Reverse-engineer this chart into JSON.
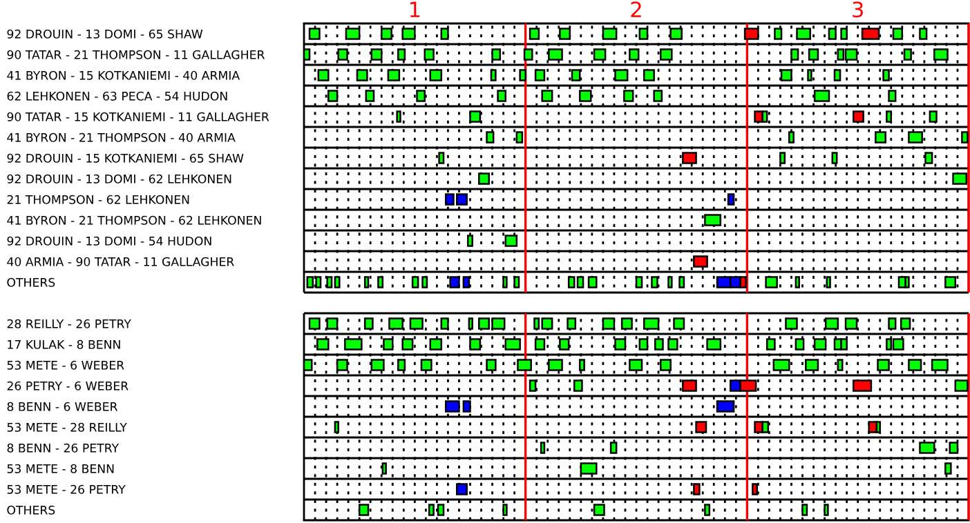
{
  "chart_data": {
    "type": "bar",
    "orientation": "horizontal",
    "grid": "x",
    "xlim": [
      0.5,
      3.5
    ],
    "xticks": [
      {
        "value": 0.55,
        "label": null
      },
      {
        "value": 0.6,
        "label": null
      },
      {
        "value": 0.65,
        "label": null
      },
      {
        "value": 0.7,
        "label": null
      },
      {
        "value": 0.75,
        "label": null
      },
      {
        "value": 0.8,
        "label": null
      },
      {
        "value": 0.85,
        "label": null
      },
      {
        "value": 0.9,
        "label": null
      },
      {
        "value": 0.95,
        "label": null
      },
      1,
      {
        "value": 1.05,
        "label": null
      },
      {
        "value": 1.1,
        "label": null
      },
      {
        "value": 1.15,
        "label": null
      },
      {
        "value": 1.2,
        "label": null
      },
      {
        "value": 1.25,
        "label": null
      },
      {
        "value": 1.3,
        "label": null
      },
      {
        "value": 1.35,
        "label": null
      },
      {
        "value": 1.4,
        "label": null
      },
      {
        "value": 1.45,
        "label": null
      },
      {
        "value": 1.55,
        "label": null
      },
      {
        "value": 1.6,
        "label": null
      },
      {
        "value": 1.65,
        "label": null
      },
      {
        "value": 1.7,
        "label": null
      },
      {
        "value": 1.75,
        "label": null
      },
      {
        "value": 1.8,
        "label": null
      },
      {
        "value": 1.85,
        "label": null
      },
      {
        "value": 1.9,
        "label": null
      },
      {
        "value": 1.95,
        "label": null
      },
      2,
      {
        "value": 2.05,
        "label": null
      },
      {
        "value": 2.1,
        "label": null
      },
      {
        "value": 2.15,
        "label": null
      },
      {
        "value": 2.2,
        "label": null
      },
      {
        "value": 2.25,
        "label": null
      },
      {
        "value": 2.3,
        "label": null
      },
      {
        "value": 2.35,
        "label": null
      },
      {
        "value": 2.4,
        "label": null
      },
      {
        "value": 2.45,
        "label": null
      },
      {
        "value": 2.55,
        "label": null
      },
      {
        "value": 2.6,
        "label": null
      },
      {
        "value": 2.65,
        "label": null
      },
      {
        "value": 2.7,
        "label": null
      },
      {
        "value": 2.75,
        "label": null
      },
      {
        "value": 2.8,
        "label": null
      },
      {
        "value": 2.85,
        "label": null
      },
      {
        "value": 2.9,
        "label": null
      },
      {
        "value": 2.95,
        "label": null
      },
      3,
      {
        "value": 3.05,
        "label": null
      },
      {
        "value": 3.1,
        "label": null
      },
      {
        "value": 3.15,
        "label": null
      },
      {
        "value": 3.2,
        "label": null
      },
      {
        "value": 3.25,
        "label": null
      },
      {
        "value": 3.3,
        "label": null
      },
      {
        "value": 3.35,
        "label": null
      },
      {
        "value": 3.4,
        "label": null
      },
      {
        "value": 3.45,
        "label": null
      }
    ],
    "ref_lines": [
      {
        "axis": "x",
        "value": 1.5,
        "color": "#ff0000"
      },
      {
        "axis": "x",
        "value": 2.5,
        "color": "#ff0000"
      },
      {
        "axis": "x",
        "value": 3.5,
        "color": "#ff0000"
      }
    ],
    "categories": [
      "92 DROUIN - 13 DOMI - 65 SHAW",
      "90 TATAR - 21 THOMPSON - 11 GALLAGHER",
      "41 BYRON - 15 KOTKANIEMI - 40 ARMIA",
      "62 LEHKONEN - 63 PECA - 54 HUDON",
      "90 TATAR - 15 KOTKANIEMI - 11 GALLAGHER",
      "41 BYRON - 21 THOMPSON - 40 ARMIA",
      "92 DROUIN - 15 KOTKANIEMI - 65 SHAW",
      "92 DROUIN - 13 DOMI - 62 LEHKONEN",
      "21 THOMPSON - 62 LEHKONEN",
      "41 BYRON - 21 THOMPSON - 62 LEHKONEN",
      "92 DROUIN - 13 DOMI - 54 HUDON",
      "40 ARMIA - 90 TATAR - 11 GALLAGHER",
      "OTHERS",
      null,
      "28 REILLY - 26 PETRY",
      "17 KULAK - 8 BENN",
      "53 METE - 6 WEBER",
      "26 PETRY - 6 WEBER",
      "8 BENN - 6 WEBER",
      "53 METE - 28 REILLY",
      "8 BENN - 26 PETRY",
      "53 METE - 8 BENN",
      "53 METE - 26 PETRY",
      "OTHERS"
    ],
    "series": [
      {
        "base": [
          0.525,
          0.5,
          0.565,
          0.61,
          0.92,
          1.325,
          1.11,
          1.29,
          1.14,
          2.31,
          1.24,
          2.26,
          0.515,
          null,
          0.525,
          0.56,
          0.5,
          1.52,
          1.14,
          0.64,
          1.57,
          0.855,
          1.19,
          0.75
        ],
        "values": [
          0.045,
          0.025,
          0.045,
          0.04,
          0.015,
          0.03,
          0.02,
          0.045,
          0.035,
          0.07,
          0.02,
          0.06,
          0.025,
          null,
          0.045,
          0.05,
          0.035,
          0.025,
          0.06,
          0.015,
          0.015,
          0.015,
          0.045,
          0.04
        ],
        "colors": [
          "#00ff00",
          "#00ff00",
          "#00ff00",
          "#00ff00",
          "#00ff00",
          "#00ff00",
          "#00ff00",
          "#00ff00",
          "#0000ff",
          "#00ff00",
          "#00ff00",
          "#ff0000",
          "#00ff00",
          null,
          "#00ff00",
          "#00ff00",
          "#00ff00",
          "#00ff00",
          "#0000ff",
          "#00ff00",
          "#00ff00",
          "#00ff00",
          "#0000ff",
          "#00ff00"
        ]
      },
      {
        "base": [
          0.69,
          0.655,
          0.74,
          0.78,
          1.25,
          1.46,
          2.21,
          3.43,
          1.19,
          null,
          1.41,
          null,
          0.555,
          null,
          0.605,
          0.685,
          0.65,
          1.72,
          1.22,
          2.27,
          1.885,
          1.75,
          2.26,
          1.065
        ],
        "values": [
          0.06,
          0.04,
          0.045,
          0.035,
          0.045,
          0.025,
          0.06,
          0.06,
          0.045,
          null,
          0.05,
          null,
          0.02,
          null,
          0.045,
          0.075,
          0.045,
          0.035,
          0.03,
          0.045,
          0.025,
          0.07,
          0.025,
          0.02
        ],
        "colors": [
          "#00ff00",
          "#00ff00",
          "#00ff00",
          "#00ff00",
          "#00ff00",
          "#00ff00",
          "#ff0000",
          "#00ff00",
          "#0000ff",
          null,
          "#00ff00",
          null,
          "#00ff00",
          null,
          "#00ff00",
          "#00ff00",
          "#00ff00",
          "#00ff00",
          "#0000ff",
          "#ff0000",
          "#00ff00",
          "#00ff00",
          "#ff0000",
          "#00ff00"
        ]
      },
      {
        "base": [
          0.85,
          0.805,
          0.88,
          1.01,
          2.535,
          2.69,
          2.65,
          null,
          2.415,
          null,
          null,
          null,
          0.605,
          null,
          0.775,
          0.86,
          0.805,
          2.21,
          2.365,
          2.535,
          3.28,
          3.395,
          2.525,
          1.105
        ],
        "values": [
          0.045,
          0.045,
          0.05,
          0.035,
          0.035,
          0.02,
          0.02,
          null,
          0.025,
          null,
          null,
          null,
          0.02,
          null,
          0.035,
          0.04,
          0.055,
          0.06,
          0.075,
          0.035,
          0.065,
          0.025,
          0.02,
          0.025
        ],
        "colors": [
          "#00ff00",
          "#00ff00",
          "#00ff00",
          "#00ff00",
          "#ff0000",
          "#00ff00",
          "#00ff00",
          null,
          "#0000ff",
          null,
          null,
          null,
          "#00ff00",
          null,
          "#00ff00",
          "#00ff00",
          "#00ff00",
          "#ff0000",
          "#0000ff",
          "#ff0000",
          "#00ff00",
          "#00ff00",
          "#ff0000",
          "#00ff00"
        ]
      },
      {
        "base": [
          0.945,
          0.925,
          1.07,
          1.375,
          2.57,
          3.08,
          2.885,
          null,
          null,
          null,
          null,
          null,
          0.64,
          null,
          0.885,
          0.945,
          0.925,
          2.425,
          null,
          2.57,
          3.415,
          null,
          null,
          1.4
        ],
        "values": [
          0.055,
          0.03,
          0.05,
          0.035,
          0.02,
          0.045,
          0.02,
          null,
          null,
          null,
          null,
          null,
          0.02,
          null,
          0.06,
          0.045,
          0.03,
          0.045,
          null,
          0.025,
          0.035,
          null,
          null,
          0.015
        ],
        "colors": [
          "#00ff00",
          "#00ff00",
          "#00ff00",
          "#00ff00",
          "#00ff00",
          "#00ff00",
          "#00ff00",
          null,
          null,
          null,
          null,
          null,
          "#00ff00",
          null,
          "#00ff00",
          "#00ff00",
          "#00ff00",
          "#0000ff",
          null,
          "#00ff00",
          "#00ff00",
          null,
          null,
          "#00ff00"
        ]
      },
      {
        "base": [
          1.12,
          1.045,
          1.345,
          1.575,
          2.98,
          3.23,
          3.305,
          null,
          null,
          null,
          null,
          null,
          0.775,
          null,
          0.98,
          1.07,
          1.03,
          2.47,
          null,
          3.05,
          null,
          null,
          null,
          1.81
        ],
        "values": [
          0.03,
          0.04,
          0.02,
          0.045,
          0.045,
          0.06,
          0.03,
          null,
          null,
          null,
          null,
          null,
          0.015,
          null,
          0.055,
          0.05,
          0.045,
          0.07,
          null,
          0.035,
          null,
          null,
          null,
          0.045
        ],
        "colors": [
          "#00ff00",
          "#00ff00",
          "#00ff00",
          "#00ff00",
          "#ff0000",
          "#00ff00",
          "#00ff00",
          null,
          null,
          null,
          null,
          null,
          "#00ff00",
          null,
          "#00ff00",
          "#00ff00",
          "#00ff00",
          "#ff0000",
          null,
          "#ff0000",
          null,
          null,
          null,
          "#00ff00"
        ]
      },
      {
        "base": [
          1.52,
          1.35,
          1.475,
          1.745,
          3.13,
          3.47,
          null,
          null,
          null,
          null,
          null,
          null,
          0.835,
          null,
          1.12,
          1.25,
          1.325,
          2.98,
          null,
          3.085,
          null,
          null,
          null,
          2.31
        ],
        "values": [
          0.04,
          0.035,
          0.025,
          0.05,
          0.02,
          0.025,
          null,
          null,
          null,
          null,
          null,
          null,
          0.02,
          null,
          0.03,
          0.045,
          0.04,
          0.08,
          null,
          0.015,
          null,
          null,
          null,
          0.02
        ],
        "colors": [
          "#00ff00",
          "#00ff00",
          "#00ff00",
          "#00ff00",
          "#00ff00",
          "#00ff00",
          null,
          null,
          null,
          null,
          null,
          null,
          "#00ff00",
          null,
          "#00ff00",
          "#00ff00",
          "#00ff00",
          "#ff0000",
          null,
          "#00ff00",
          null,
          null,
          null,
          "#00ff00"
        ]
      },
      {
        "base": [
          1.655,
          1.495,
          1.545,
          1.945,
          3.325,
          null,
          null,
          null,
          null,
          null,
          null,
          null,
          0.99,
          null,
          1.245,
          1.41,
          1.465,
          3.44,
          null,
          null,
          null,
          null,
          null,
          2.75
        ],
        "values": [
          0.045,
          0.035,
          0.04,
          0.04,
          0.03,
          null,
          null,
          null,
          null,
          null,
          null,
          null,
          0.025,
          null,
          0.015,
          0.065,
          0.06,
          0.055,
          null,
          null,
          null,
          null,
          null,
          0.02
        ],
        "color": "#00ff00"
      },
      {
        "base": [
          1.85,
          1.605,
          1.71,
          2.08,
          null,
          null,
          null,
          null,
          null,
          null,
          null,
          null,
          1.035,
          null,
          1.29,
          1.545,
          1.605,
          null,
          null,
          null,
          null,
          null,
          null,
          2.85
        ],
        "values": [
          0.06,
          0.06,
          0.035,
          0.035,
          null,
          null,
          null,
          null,
          null,
          null,
          null,
          null,
          0.02,
          null,
          0.045,
          0.04,
          0.06,
          null,
          null,
          null,
          null,
          null,
          null,
          0.015
        ],
        "color": "#00ff00"
      },
      {
        "base": [
          2.015,
          1.81,
          1.905,
          2.805,
          null,
          null,
          null,
          null,
          null,
          null,
          null,
          null,
          1.16,
          null,
          1.35,
          1.655,
          1.745,
          null,
          null,
          null,
          null,
          null,
          null,
          null
        ],
        "values": [
          0.035,
          0.05,
          0.055,
          0.065,
          null,
          null,
          null,
          null,
          null,
          null,
          null,
          null,
          0.04,
          null,
          0.055,
          0.04,
          0.02,
          null,
          null,
          null,
          null,
          null,
          null,
          null
        ],
        "colors": [
          "#00ff00",
          "#00ff00",
          "#00ff00",
          "#00ff00",
          null,
          null,
          null,
          null,
          null,
          null,
          null,
          null,
          "#0000ff",
          null,
          "#00ff00",
          "#00ff00",
          "#00ff00",
          null,
          null,
          null,
          null,
          null,
          null,
          null
        ]
      },
      {
        "base": [
          2.155,
          1.97,
          2.035,
          3.14,
          null,
          null,
          null,
          null,
          null,
          null,
          null,
          null,
          1.22,
          null,
          1.54,
          1.905,
          1.97,
          null,
          null,
          null,
          null,
          null,
          null,
          null
        ],
        "values": [
          0.05,
          0.04,
          0.045,
          0.03,
          null,
          null,
          null,
          null,
          null,
          null,
          null,
          null,
          0.025,
          null,
          0.02,
          0.045,
          0.055,
          null,
          null,
          null,
          null,
          null,
          null,
          null
        ],
        "colors": [
          "#00ff00",
          "#00ff00",
          "#00ff00",
          "#00ff00",
          null,
          null,
          null,
          null,
          null,
          null,
          null,
          null,
          "#0000ff",
          null,
          "#00ff00",
          "#00ff00",
          "#00ff00",
          null,
          null,
          null,
          null,
          null,
          null,
          null
        ]
      },
      {
        "base": [
          2.49,
          2.11,
          2.655,
          null,
          null,
          null,
          null,
          null,
          null,
          null,
          null,
          null,
          1.4,
          null,
          1.575,
          2.015,
          2.11,
          null,
          null,
          null,
          null,
          null,
          null,
          null
        ],
        "values": [
          0.06,
          0.05,
          0.045,
          null,
          null,
          null,
          null,
          null,
          null,
          null,
          null,
          null,
          0.015,
          null,
          0.045,
          0.035,
          0.045,
          null,
          null,
          null,
          null,
          null,
          null,
          null
        ],
        "colors": [
          "#ff0000",
          "#00ff00",
          "#00ff00",
          null,
          null,
          null,
          null,
          null,
          null,
          null,
          null,
          null,
          "#00ff00",
          null,
          "#00ff00",
          "#00ff00",
          "#00ff00",
          null,
          null,
          null,
          null,
          null,
          null,
          null
        ]
      },
      {
        "base": [
          2.625,
          2.7,
          2.775,
          null,
          null,
          null,
          null,
          null,
          null,
          null,
          null,
          null,
          1.45,
          null,
          1.69,
          2.085,
          2.62,
          null,
          null,
          null,
          null,
          null,
          null,
          null
        ],
        "values": [
          0.03,
          0.03,
          0.015,
          null,
          null,
          null,
          null,
          null,
          null,
          null,
          null,
          null,
          0.02,
          null,
          0.035,
          0.035,
          0.07,
          null,
          null,
          null,
          null,
          null,
          null,
          null
        ],
        "color": "#00ff00"
      },
      {
        "base": [
          2.725,
          2.78,
          2.895,
          null,
          null,
          null,
          null,
          null,
          null,
          null,
          null,
          null,
          1.695,
          null,
          1.85,
          2.145,
          2.765,
          null,
          null,
          null,
          null,
          null,
          null,
          null
        ],
        "values": [
          0.06,
          0.04,
          0.025,
          null,
          null,
          null,
          null,
          null,
          null,
          null,
          null,
          null,
          0.025,
          null,
          0.05,
          0.04,
          0.055,
          null,
          null,
          null,
          null,
          null,
          null,
          null
        ],
        "color": "#00ff00"
      },
      {
        "base": [
          2.87,
          2.91,
          3.115,
          null,
          null,
          null,
          null,
          null,
          null,
          null,
          null,
          null,
          1.735,
          null,
          1.935,
          2.32,
          2.91,
          null,
          null,
          null,
          null,
          null,
          null,
          null
        ],
        "values": [
          0.03,
          0.025,
          0.025,
          null,
          null,
          null,
          null,
          null,
          null,
          null,
          null,
          null,
          0.025,
          null,
          0.045,
          0.06,
          0.02,
          null,
          null,
          null,
          null,
          null,
          null,
          null
        ],
        "color": "#00ff00"
      },
      {
        "base": [
          2.925,
          2.945,
          null,
          null,
          null,
          null,
          null,
          null,
          null,
          null,
          null,
          null,
          1.785,
          null,
          2.035,
          2.59,
          3.09,
          null,
          null,
          null,
          null,
          null,
          null,
          null
        ],
        "values": [
          0.025,
          0.05,
          null,
          null,
          null,
          null,
          null,
          null,
          null,
          null,
          null,
          null,
          0.035,
          null,
          0.065,
          0.035,
          0.05,
          null,
          null,
          null,
          null,
          null,
          null,
          null
        ],
        "color": "#00ff00"
      },
      {
        "base": [
          3.02,
          3.21,
          null,
          null,
          null,
          null,
          null,
          null,
          null,
          null,
          null,
          null,
          2.0,
          null,
          2.17,
          2.72,
          3.23,
          null,
          null,
          null,
          null,
          null,
          null,
          null
        ],
        "values": [
          0.075,
          0.03,
          null,
          null,
          null,
          null,
          null,
          null,
          null,
          null,
          null,
          null,
          0.025,
          null,
          0.045,
          0.035,
          0.055,
          null,
          null,
          null,
          null,
          null,
          null,
          null
        ],
        "colors": [
          "#ff0000",
          "#00ff00",
          null,
          null,
          null,
          null,
          null,
          null,
          null,
          null,
          null,
          null,
          "#00ff00",
          null,
          "#00ff00",
          "#00ff00",
          "#00ff00",
          null,
          null,
          null,
          null,
          null,
          null,
          null
        ]
      },
      {
        "base": [
          3.16,
          3.345,
          null,
          null,
          null,
          null,
          null,
          null,
          null,
          null,
          null,
          null,
          2.07,
          null,
          2.675,
          2.805,
          3.335,
          null,
          null,
          null,
          null,
          null,
          null,
          null
        ],
        "values": [
          0.04,
          0.06,
          null,
          null,
          null,
          null,
          null,
          null,
          null,
          null,
          null,
          null,
          0.025,
          null,
          0.05,
          0.05,
          0.07,
          null,
          null,
          null,
          null,
          null,
          null,
          null
        ],
        "color": "#00ff00"
      },
      {
        "base": [
          3.28,
          null,
          null,
          null,
          null,
          null,
          null,
          null,
          null,
          null,
          null,
          null,
          2.145,
          null,
          2.855,
          2.895,
          null,
          null,
          null,
          null,
          null,
          null,
          null,
          null
        ],
        "values": [
          0.03,
          null,
          null,
          null,
          null,
          null,
          null,
          null,
          null,
          null,
          null,
          null,
          0.015,
          null,
          0.055,
          0.03,
          null,
          null,
          null,
          null,
          null,
          null,
          null,
          null
        ],
        "color": "#00ff00"
      },
      {
        "base": [
          null,
          null,
          null,
          null,
          null,
          null,
          null,
          null,
          null,
          null,
          null,
          null,
          2.195,
          null,
          2.945,
          2.925,
          null,
          null,
          null,
          null,
          null,
          null,
          null,
          null
        ],
        "values": [
          null,
          null,
          null,
          null,
          null,
          null,
          null,
          null,
          null,
          null,
          null,
          null,
          0.02,
          null,
          0.05,
          0.025,
          null,
          null,
          null,
          null,
          null,
          null,
          null,
          null
        ],
        "color": "#00ff00"
      },
      {
        "base": [
          null,
          null,
          null,
          null,
          null,
          null,
          null,
          null,
          null,
          null,
          null,
          null,
          2.365,
          null,
          3.14,
          3.13,
          null,
          null,
          null,
          null,
          null,
          null,
          null,
          null
        ],
        "values": [
          null,
          null,
          null,
          null,
          null,
          null,
          null,
          null,
          null,
          null,
          null,
          null,
          0.06,
          null,
          0.03,
          0.02,
          null,
          null,
          null,
          null,
          null,
          null,
          null,
          null
        ],
        "colors": [
          null,
          null,
          null,
          null,
          null,
          null,
          null,
          null,
          null,
          null,
          null,
          null,
          "#0000ff",
          null,
          "#00ff00",
          "#00ff00",
          null,
          null,
          null,
          null,
          null,
          null,
          null,
          null
        ]
      },
      {
        "base": [
          null,
          null,
          null,
          null,
          null,
          null,
          null,
          null,
          null,
          null,
          null,
          null,
          2.425,
          null,
          3.195,
          3.16,
          null,
          null,
          null,
          null,
          null,
          null,
          null,
          null
        ],
        "values": [
          null,
          null,
          null,
          null,
          null,
          null,
          null,
          null,
          null,
          null,
          null,
          null,
          0.045,
          null,
          0.04,
          0.045,
          null,
          null,
          null,
          null,
          null,
          null,
          null,
          null
        ],
        "colors": [
          null,
          null,
          null,
          null,
          null,
          null,
          null,
          null,
          null,
          null,
          null,
          null,
          "#0000ff",
          null,
          "#00ff00",
          "#00ff00",
          null,
          null,
          null,
          null,
          null,
          null,
          null,
          null
        ]
      },
      {
        "base": [
          null,
          null,
          null,
          null,
          null,
          null,
          null,
          null,
          null,
          null,
          null,
          null,
          2.47,
          null,
          null,
          null,
          null,
          null,
          null,
          null,
          null,
          null,
          null,
          null
        ],
        "values": [
          null,
          null,
          null,
          null,
          null,
          null,
          null,
          null,
          null,
          null,
          null,
          null,
          0.025,
          null,
          null,
          null,
          null,
          null,
          null,
          null,
          null,
          null,
          null,
          null
        ],
        "color": "#ff0000"
      },
      {
        "base": [
          null,
          null,
          null,
          null,
          null,
          null,
          null,
          null,
          null,
          null,
          null,
          null,
          2.585,
          null,
          null,
          null,
          null,
          null,
          null,
          null,
          null,
          null,
          null,
          null
        ],
        "values": [
          null,
          null,
          null,
          null,
          null,
          null,
          null,
          null,
          null,
          null,
          null,
          null,
          0.05,
          null,
          null,
          null,
          null,
          null,
          null,
          null,
          null,
          null,
          null,
          null
        ],
        "color": "#00ff00"
      },
      {
        "base": [
          null,
          null,
          null,
          null,
          null,
          null,
          null,
          null,
          null,
          null,
          null,
          null,
          2.72,
          null,
          null,
          null,
          null,
          null,
          null,
          null,
          null,
          null,
          null,
          null
        ],
        "values": [
          null,
          null,
          null,
          null,
          null,
          null,
          null,
          null,
          null,
          null,
          null,
          null,
          0.015,
          null,
          null,
          null,
          null,
          null,
          null,
          null,
          null,
          null,
          null,
          null
        ],
        "color": "#00ff00"
      },
      {
        "base": [
          null,
          null,
          null,
          null,
          null,
          null,
          null,
          null,
          null,
          null,
          null,
          null,
          2.86,
          null,
          null,
          null,
          null,
          null,
          null,
          null,
          null,
          null,
          null,
          null
        ],
        "values": [
          null,
          null,
          null,
          null,
          null,
          null,
          null,
          null,
          null,
          null,
          null,
          null,
          0.015,
          null,
          null,
          null,
          null,
          null,
          null,
          null,
          null,
          null,
          null,
          null
        ],
        "color": "#00ff00"
      },
      {
        "base": [
          null,
          null,
          null,
          null,
          null,
          null,
          null,
          null,
          null,
          null,
          null,
          null,
          3.185,
          null,
          null,
          null,
          null,
          null,
          null,
          null,
          null,
          null,
          null,
          null
        ],
        "values": [
          null,
          null,
          null,
          null,
          null,
          null,
          null,
          null,
          null,
          null,
          null,
          null,
          0.03,
          null,
          null,
          null,
          null,
          null,
          null,
          null,
          null,
          null,
          null,
          null
        ],
        "color": "#00ff00"
      },
      {
        "base": [
          null,
          null,
          null,
          null,
          null,
          null,
          null,
          null,
          null,
          null,
          null,
          null,
          3.215,
          null,
          null,
          null,
          null,
          null,
          null,
          null,
          null,
          null,
          null,
          null
        ],
        "values": [
          null,
          null,
          null,
          null,
          null,
          null,
          null,
          null,
          null,
          null,
          null,
          null,
          0.015,
          null,
          null,
          null,
          null,
          null,
          null,
          null,
          null,
          null,
          null,
          null
        ],
        "color": "#00ff00"
      },
      {
        "base": [
          null,
          null,
          null,
          null,
          null,
          null,
          null,
          null,
          null,
          null,
          null,
          null,
          3.395,
          null,
          null,
          null,
          null,
          null,
          null,
          null,
          null,
          null,
          null,
          null
        ],
        "values": [
          null,
          null,
          null,
          null,
          null,
          null,
          null,
          null,
          null,
          null,
          null,
          null,
          0.045,
          null,
          null,
          null,
          null,
          null,
          null,
          null,
          null,
          null,
          null,
          null
        ],
        "color": "#00ff00"
      }
    ]
  }
}
